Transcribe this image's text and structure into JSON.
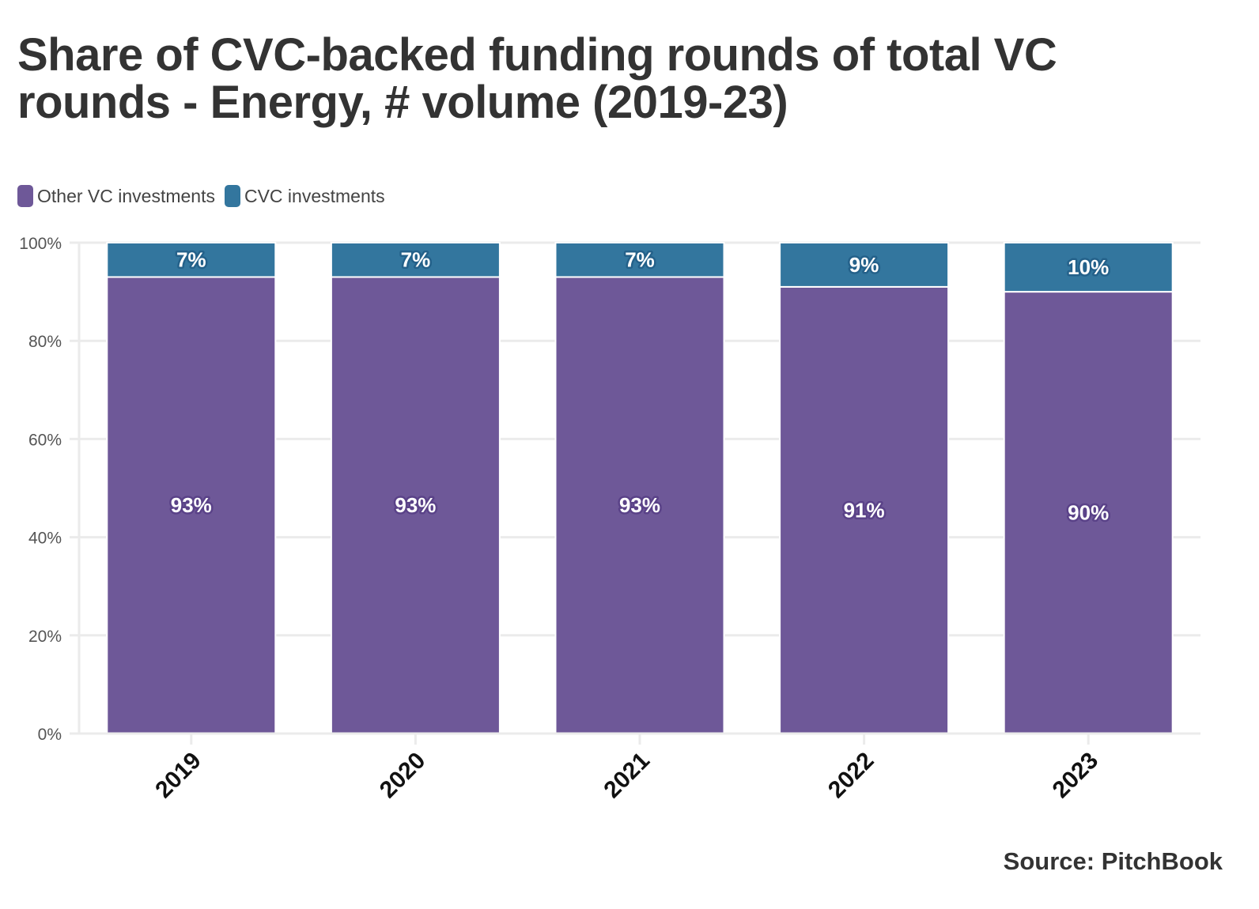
{
  "title": "Share of CVC-backed funding rounds of total VC rounds - Energy, # volume (2019-23)",
  "source": "Source: PitchBook",
  "legend": [
    {
      "label": "Other VC investments",
      "color": "#6e5898"
    },
    {
      "label": "CVC investments",
      "color": "#33769e"
    }
  ],
  "chart_data": {
    "type": "bar",
    "stacked": true,
    "title": "Share of CVC-backed funding rounds of total VC rounds - Energy, # volume (2019-23)",
    "xlabel": "",
    "ylabel": "",
    "categories": [
      "2019",
      "2020",
      "2021",
      "2022",
      "2023"
    ],
    "series": [
      {
        "name": "Other VC investments",
        "color": "#6e5898",
        "values": [
          93,
          93,
          93,
          91,
          90
        ],
        "labels": [
          "93%",
          "93%",
          "93%",
          "91%",
          "90%"
        ]
      },
      {
        "name": "CVC investments",
        "color": "#33769e",
        "values": [
          7,
          7,
          7,
          9,
          10
        ],
        "labels": [
          "7%",
          "7%",
          "7%",
          "9%",
          "10%"
        ]
      }
    ],
    "ylim": [
      0,
      100
    ],
    "yticks": [
      0,
      20,
      40,
      60,
      80,
      100
    ],
    "ytick_labels": [
      "0%",
      "20%",
      "40%",
      "60%",
      "80%",
      "100%"
    ],
    "grid": true,
    "legend_position": "top-left"
  }
}
